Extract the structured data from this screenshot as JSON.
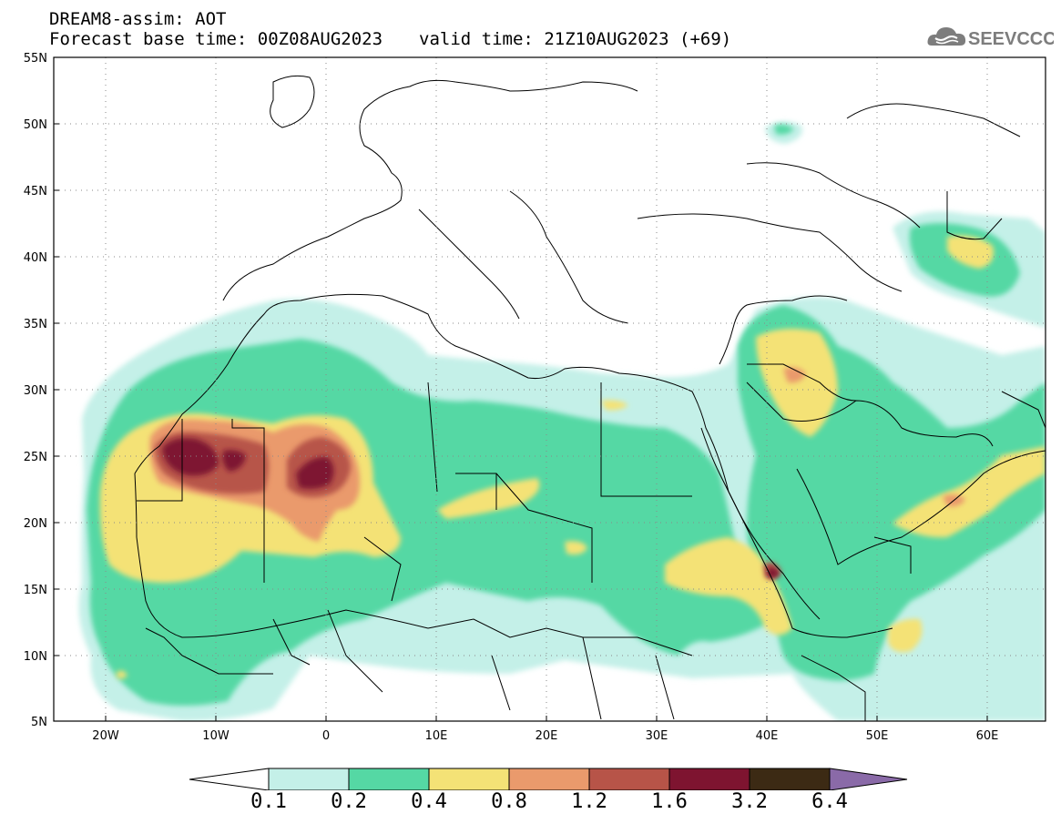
{
  "header": {
    "title": "DREAM8-assim: AOT",
    "forecast_base": "Forecast base time: 00Z08AUG2023",
    "valid_time": "valid time: 21Z10AUG2023 (+69)"
  },
  "logo": {
    "text": "SEEVCCC",
    "icon": "cloud-icon"
  },
  "axes": {
    "lon_ticks": [
      "20W",
      "10W",
      "0",
      "10E",
      "20E",
      "30E",
      "40E",
      "50E",
      "60E"
    ],
    "lat_ticks": [
      "55N",
      "50N",
      "45N",
      "40N",
      "35N",
      "30N",
      "25N",
      "20N",
      "15N",
      "10N",
      "5N"
    ],
    "lon_range": [
      -25,
      65
    ],
    "lat_range": [
      5,
      55
    ]
  },
  "legend": {
    "levels": [
      "0.1",
      "0.2",
      "0.4",
      "0.8",
      "1.2",
      "1.6",
      "3.2",
      "6.4"
    ],
    "colors": [
      "#ffffff",
      "#c4f0e8",
      "#55d8a4",
      "#f4e276",
      "#ea9a6c",
      "#b75448",
      "#7e1430",
      "#3c2a14",
      "#8a6aa8"
    ]
  }
}
